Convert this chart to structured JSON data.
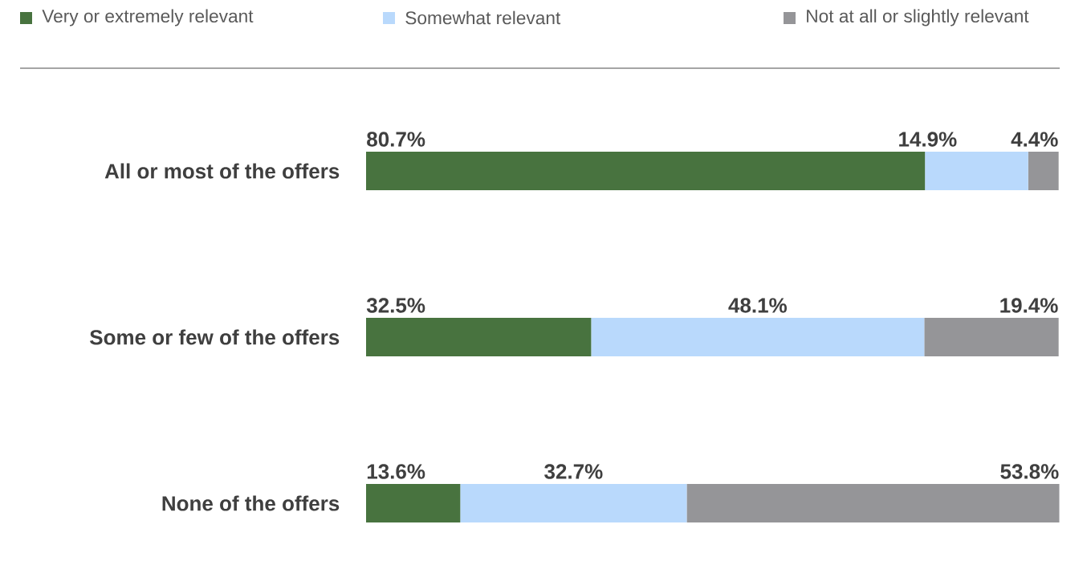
{
  "chart_data": {
    "type": "bar",
    "orientation": "horizontal",
    "stacked": true,
    "legend": "top",
    "data_labels": true,
    "categories": [
      "All or most of the offers",
      "Some or few of the offers",
      "None of the offers"
    ],
    "series": [
      {
        "name": "Very or extremely relevant",
        "color": "#48733f",
        "values": [
          80.7,
          32.5,
          13.6
        ],
        "value_labels": [
          "80.7%",
          "32.5%",
          "13.6%"
        ]
      },
      {
        "name": "Somewhat relevant",
        "color": "#b9d9fc",
        "values": [
          14.9,
          48.1,
          32.7
        ],
        "value_labels": [
          "14.9%",
          "48.1%",
          "32.7%"
        ]
      },
      {
        "name": "Not at all or slightly relevant",
        "color": "#959598",
        "values": [
          4.4,
          19.4,
          53.8
        ],
        "value_labels": [
          "4.4%",
          "19.4%",
          "53.8%"
        ]
      }
    ]
  }
}
